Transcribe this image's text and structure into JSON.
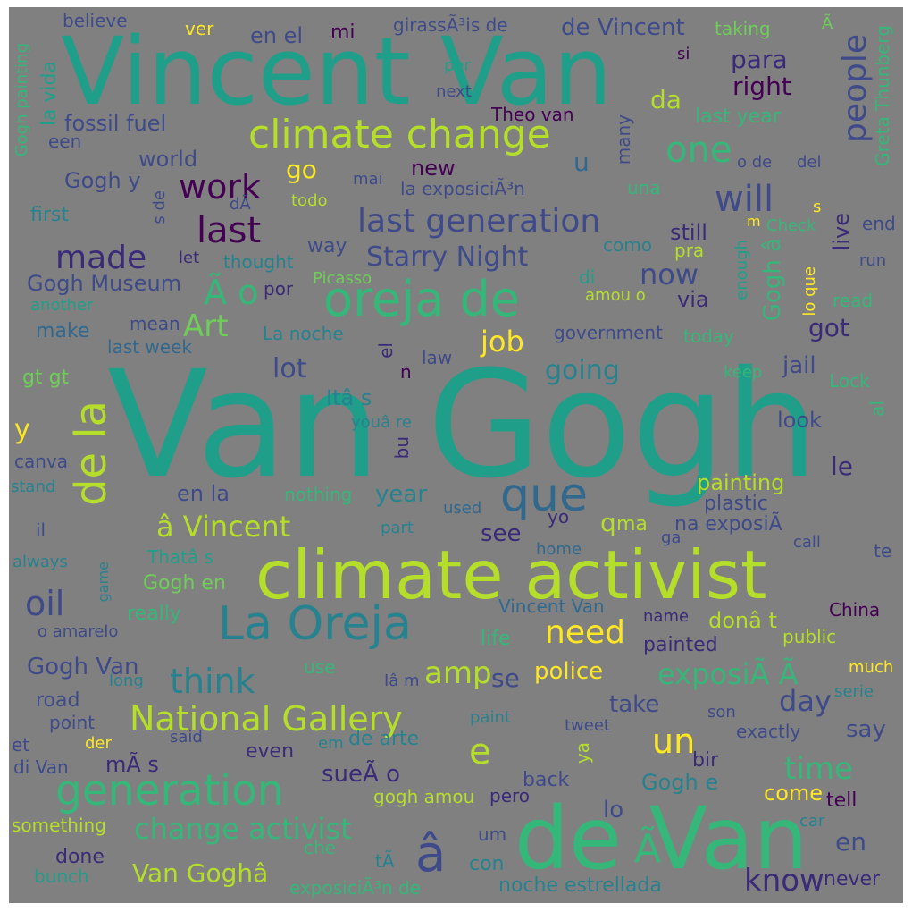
{
  "background": "#808080",
  "palette": {
    "purple": "#440154",
    "indigo": "#3b2a77",
    "blue": "#3e4a89",
    "slate": "#31688e",
    "teal": "#26828e",
    "green": "#1f9e89",
    "emerald": "#35b779",
    "lime": "#6ece58",
    "chartreuse": "#b5de2b",
    "yellow": "#fde725"
  },
  "words": [
    "Van Gogh",
    "Vincent Van",
    "de Van",
    "climate activist",
    "La Oreja",
    "oreja de",
    "climate change",
    "generation",
    "que",
    "de la",
    "last generation",
    "National Gallery",
    "change activist",
    "think",
    "last",
    "Van Goghâ",
    "â Vincent",
    "need",
    "amp",
    "one",
    "will",
    "people",
    "un",
    "e",
    "work",
    "made",
    "oil",
    "Ã o",
    "Art",
    "Starry Night",
    "exposiÃ Ã",
    "Gogh Museum",
    "job",
    "going",
    "now",
    "lot",
    "day",
    "time",
    "know",
    "en",
    "â",
    "Ã",
    "para",
    "right",
    "da",
    "go",
    "new",
    "u",
    "world",
    "fossil fuel",
    "Gogh y",
    "first",
    "way",
    "via",
    "got",
    "live",
    "jail",
    "look",
    "le",
    "painting",
    "plastic",
    "en la",
    "year",
    "see",
    "q",
    "ma",
    "na exposiÃ",
    "Gogh en",
    "donâ t",
    "painted",
    "police",
    "se",
    "take",
    "say",
    "Gogh Van",
    "road",
    "sueÃ o",
    "lo",
    "Gogh e",
    "come",
    "tell",
    "never",
    "noche estrellada",
    "exposiciÃ³n de",
    "con",
    "done",
    "bunch",
    "something",
    "der",
    "point",
    "et",
    "di Van",
    "mÃ s",
    "de Vincent",
    "en el",
    "mi",
    "girassÃ³is de",
    "taking",
    "believe",
    "ver",
    "la vida",
    "Greta Thunberg",
    "Gogh painting",
    "een",
    "la exposiciÃ³n",
    "Theo van",
    "many",
    "last year",
    "o de",
    "del",
    "todo",
    "dÃ",
    "una",
    "s de",
    "still",
    "Check",
    "end",
    "como",
    "pra",
    "enough",
    "lo que",
    "run",
    "thought",
    "let",
    "Picasso",
    "por",
    "di",
    "amou o",
    "read",
    "another",
    "mean",
    "make",
    "last week",
    "La noche",
    "government",
    "today",
    "el",
    "n",
    "law",
    "keep",
    "Lock",
    "gt gt",
    "Itâ s",
    "y",
    "youâ re",
    "canva",
    "bu",
    "stand",
    "nothing",
    "used",
    "yo",
    "part",
    "home",
    "il",
    "always",
    "game",
    "Thatâ s",
    "ga",
    "call",
    "te",
    "China",
    "name",
    "Vincent Van",
    "really",
    "o amarelo",
    "life",
    "public",
    "use",
    "much",
    "long",
    "Iâ m",
    "serie",
    "paint",
    "son",
    "tweet",
    "ya",
    "said",
    "em",
    "de arte",
    "even",
    "bir",
    "exactly",
    "back",
    "pero",
    "gogh amou",
    "um",
    "car",
    "che",
    "tÃ",
    "per",
    "next",
    "mai",
    "si",
    "al",
    "s",
    "m",
    "Gogh â",
    "Ã"
  ]
}
